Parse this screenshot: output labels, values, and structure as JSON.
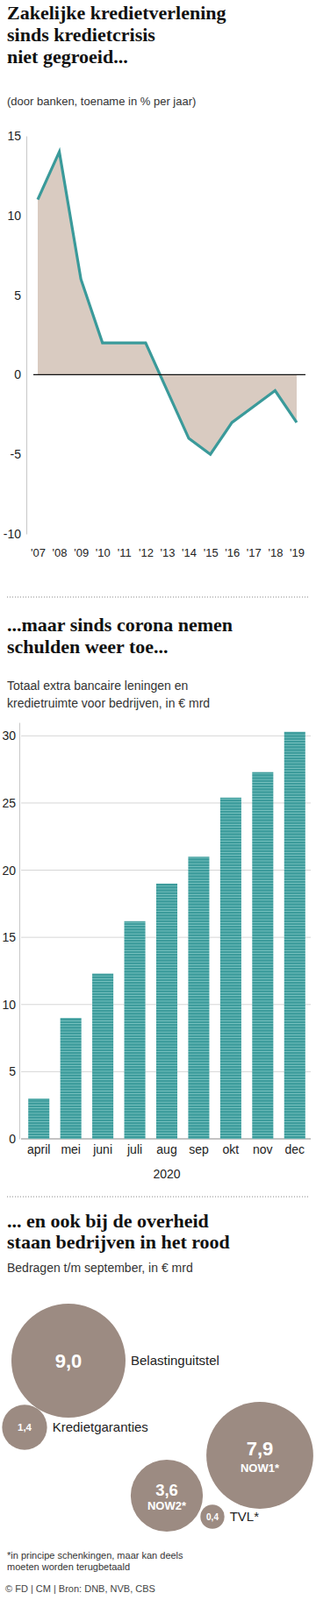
{
  "chart_data": [
    {
      "type": "area",
      "title": [
        "Zakelijke kredietverlening",
        "sinds kredietcrisis",
        "niet gegroeid..."
      ],
      "subtitle": "(door banken, toename in % per jaar)",
      "categories": [
        "'07",
        "'08",
        "'09",
        "'10",
        "'11",
        "'12",
        "'13",
        "'14",
        "'15",
        "'16",
        "'17",
        "'18",
        "'19"
      ],
      "values": [
        11,
        14,
        6,
        2,
        2,
        2,
        -1,
        -4,
        -5,
        -3,
        -2,
        -1,
        -3
      ],
      "color": "#3a9a9a",
      "ylim": [
        -10,
        15
      ],
      "yticks": [
        -10,
        -5,
        0,
        5,
        10,
        15
      ],
      "grid": false
    },
    {
      "type": "bar",
      "title": [
        "...maar sinds corona nemen",
        "schulden weer toe..."
      ],
      "subtitle": [
        "Totaal extra bancaire leningen en",
        "kredietruimte voor bedrijven, in € mrd"
      ],
      "categories": [
        "april",
        "mei",
        "juni",
        "juli",
        "aug",
        "sep",
        "okt",
        "nov",
        "dec"
      ],
      "xlabel": "2020",
      "values": [
        3,
        9,
        12.3,
        16.2,
        19,
        21,
        25.4,
        27.3,
        30.3
      ],
      "color": "#3a9a9a",
      "ylim": [
        0,
        31
      ],
      "yticks": [
        0,
        5,
        10,
        15,
        20,
        25,
        30
      ],
      "grid": true
    },
    {
      "type": "bubble",
      "title": [
        "... en ook bij de overheid",
        "staan bedrijven in het rood"
      ],
      "subtitle": "Bedragen t/m september, in € mrd",
      "categories": [
        "Belastinguitstel",
        "Kredietgaranties",
        "NOW1*",
        "NOW2*",
        "TVL*"
      ],
      "values": [
        9.0,
        1.4,
        7.9,
        3.6,
        0.4
      ],
      "value_labels": [
        "9,0",
        "1,4",
        "7,9",
        "3,6",
        "0,4"
      ],
      "data_labels": true,
      "color": "#9c8b82",
      "footnote": [
        "*in principe schenkingen, maar kan deels",
        "moeten worden terugbetaald"
      ]
    }
  ],
  "source": "© FD | CM | Bron: DNB, NVB, CBS"
}
